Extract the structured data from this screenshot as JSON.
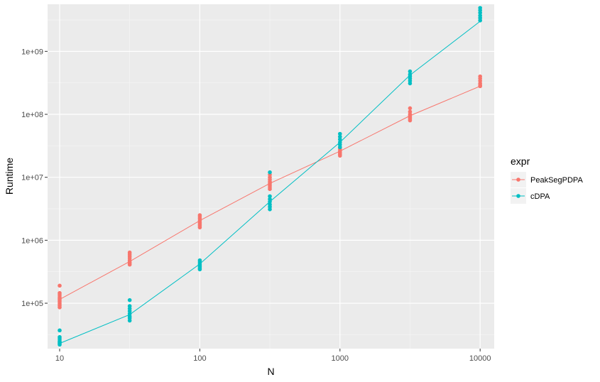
{
  "chart_data": {
    "type": "line",
    "xlabel": "N",
    "ylabel": "Runtime",
    "x_scale": "log10",
    "y_scale": "log10",
    "xlim": [
      8.2,
      12600
    ],
    "ylim": [
      19000,
      5600000000
    ],
    "x_ticks": [
      10,
      100,
      1000,
      10000
    ],
    "x_tick_labels": [
      "10",
      "100",
      "1000",
      "10000"
    ],
    "x_minor_ticks": [
      31.6,
      316,
      3160
    ],
    "y_ticks": [
      100000,
      1000000,
      10000000,
      100000000,
      1000000000
    ],
    "y_tick_labels": [
      "1e+05",
      "1e+06",
      "1e+07",
      "1e+08",
      "1e+09"
    ],
    "y_minor_ticks": [
      31600,
      316000,
      3160000,
      31600000,
      316000000,
      3160000000
    ],
    "grid": true,
    "panel_background": "#ebebeb",
    "legend": {
      "title": "expr",
      "position": "right"
    },
    "series": [
      {
        "name": "PeakSegPDPA",
        "color": "#F8766D",
        "line_x": [
          10,
          31.6,
          100,
          316,
          1000,
          3160,
          10000
        ],
        "line_y": [
          115000,
          460000,
          2050000,
          8000000,
          26000000,
          95000000,
          280000000
        ],
        "points": [
          {
            "x": 10,
            "y": [
              190000,
              145000,
              135000,
              125000,
              118000,
              112000,
              105000,
              98000,
              92000,
              86000
            ]
          },
          {
            "x": 31.6,
            "y": [
              640000,
              600000,
              560000,
              520000,
              480000,
              450000,
              430000,
              410000
            ]
          },
          {
            "x": 100,
            "y": [
              2500000,
              2350000,
              2200000,
              2050000,
              1900000,
              1800000,
              1700000,
              1600000
            ]
          },
          {
            "x": 316,
            "y": [
              11000000,
              10000000,
              9200000,
              8500000,
              8000000,
              7500000,
              7000000,
              6500000
            ]
          },
          {
            "x": 1000,
            "y": [
              30000000,
              28000000,
              26000000,
              25000000,
              24000000,
              23000000,
              22000000
            ]
          },
          {
            "x": 3160,
            "y": [
              125000000,
              110000000,
              100000000,
              95000000,
              90000000,
              85000000,
              80000000
            ]
          },
          {
            "x": 10000,
            "y": [
              400000000,
              370000000,
              340000000,
              310000000,
              290000000,
              280000000
            ]
          }
        ]
      },
      {
        "name": "cDPA",
        "color": "#00BFC4",
        "line_x": [
          10,
          31.6,
          100,
          316,
          1000,
          3160,
          10000
        ],
        "line_y": [
          23000,
          66000,
          420000,
          4100000,
          36000000,
          420000000,
          3000000000
        ],
        "points": [
          {
            "x": 10,
            "y": [
              37000,
              29000,
              27000,
              25000,
              24000,
              23000,
              22000
            ]
          },
          {
            "x": 31.6,
            "y": [
              112000,
              90000,
              82000,
              75000,
              68000,
              62000,
              58000,
              53000
            ]
          },
          {
            "x": 100,
            "y": [
              480000,
              450000,
              420000,
              400000,
              380000,
              360000,
              345000
            ]
          },
          {
            "x": 316,
            "y": [
              12000000,
              5000000,
              4500000,
              4100000,
              3700000,
              3400000,
              3100000
            ]
          },
          {
            "x": 1000,
            "y": [
              49000000,
              44000000,
              40000000,
              36000000,
              33000000,
              30000000
            ]
          },
          {
            "x": 3160,
            "y": [
              480000000,
              430000000,
              400000000,
              370000000,
              340000000,
              310000000
            ]
          },
          {
            "x": 10000,
            "y": [
              4900000000,
              4500000000,
              4100000000,
              3700000000,
              3400000000,
              3100000000
            ]
          }
        ]
      }
    ]
  }
}
